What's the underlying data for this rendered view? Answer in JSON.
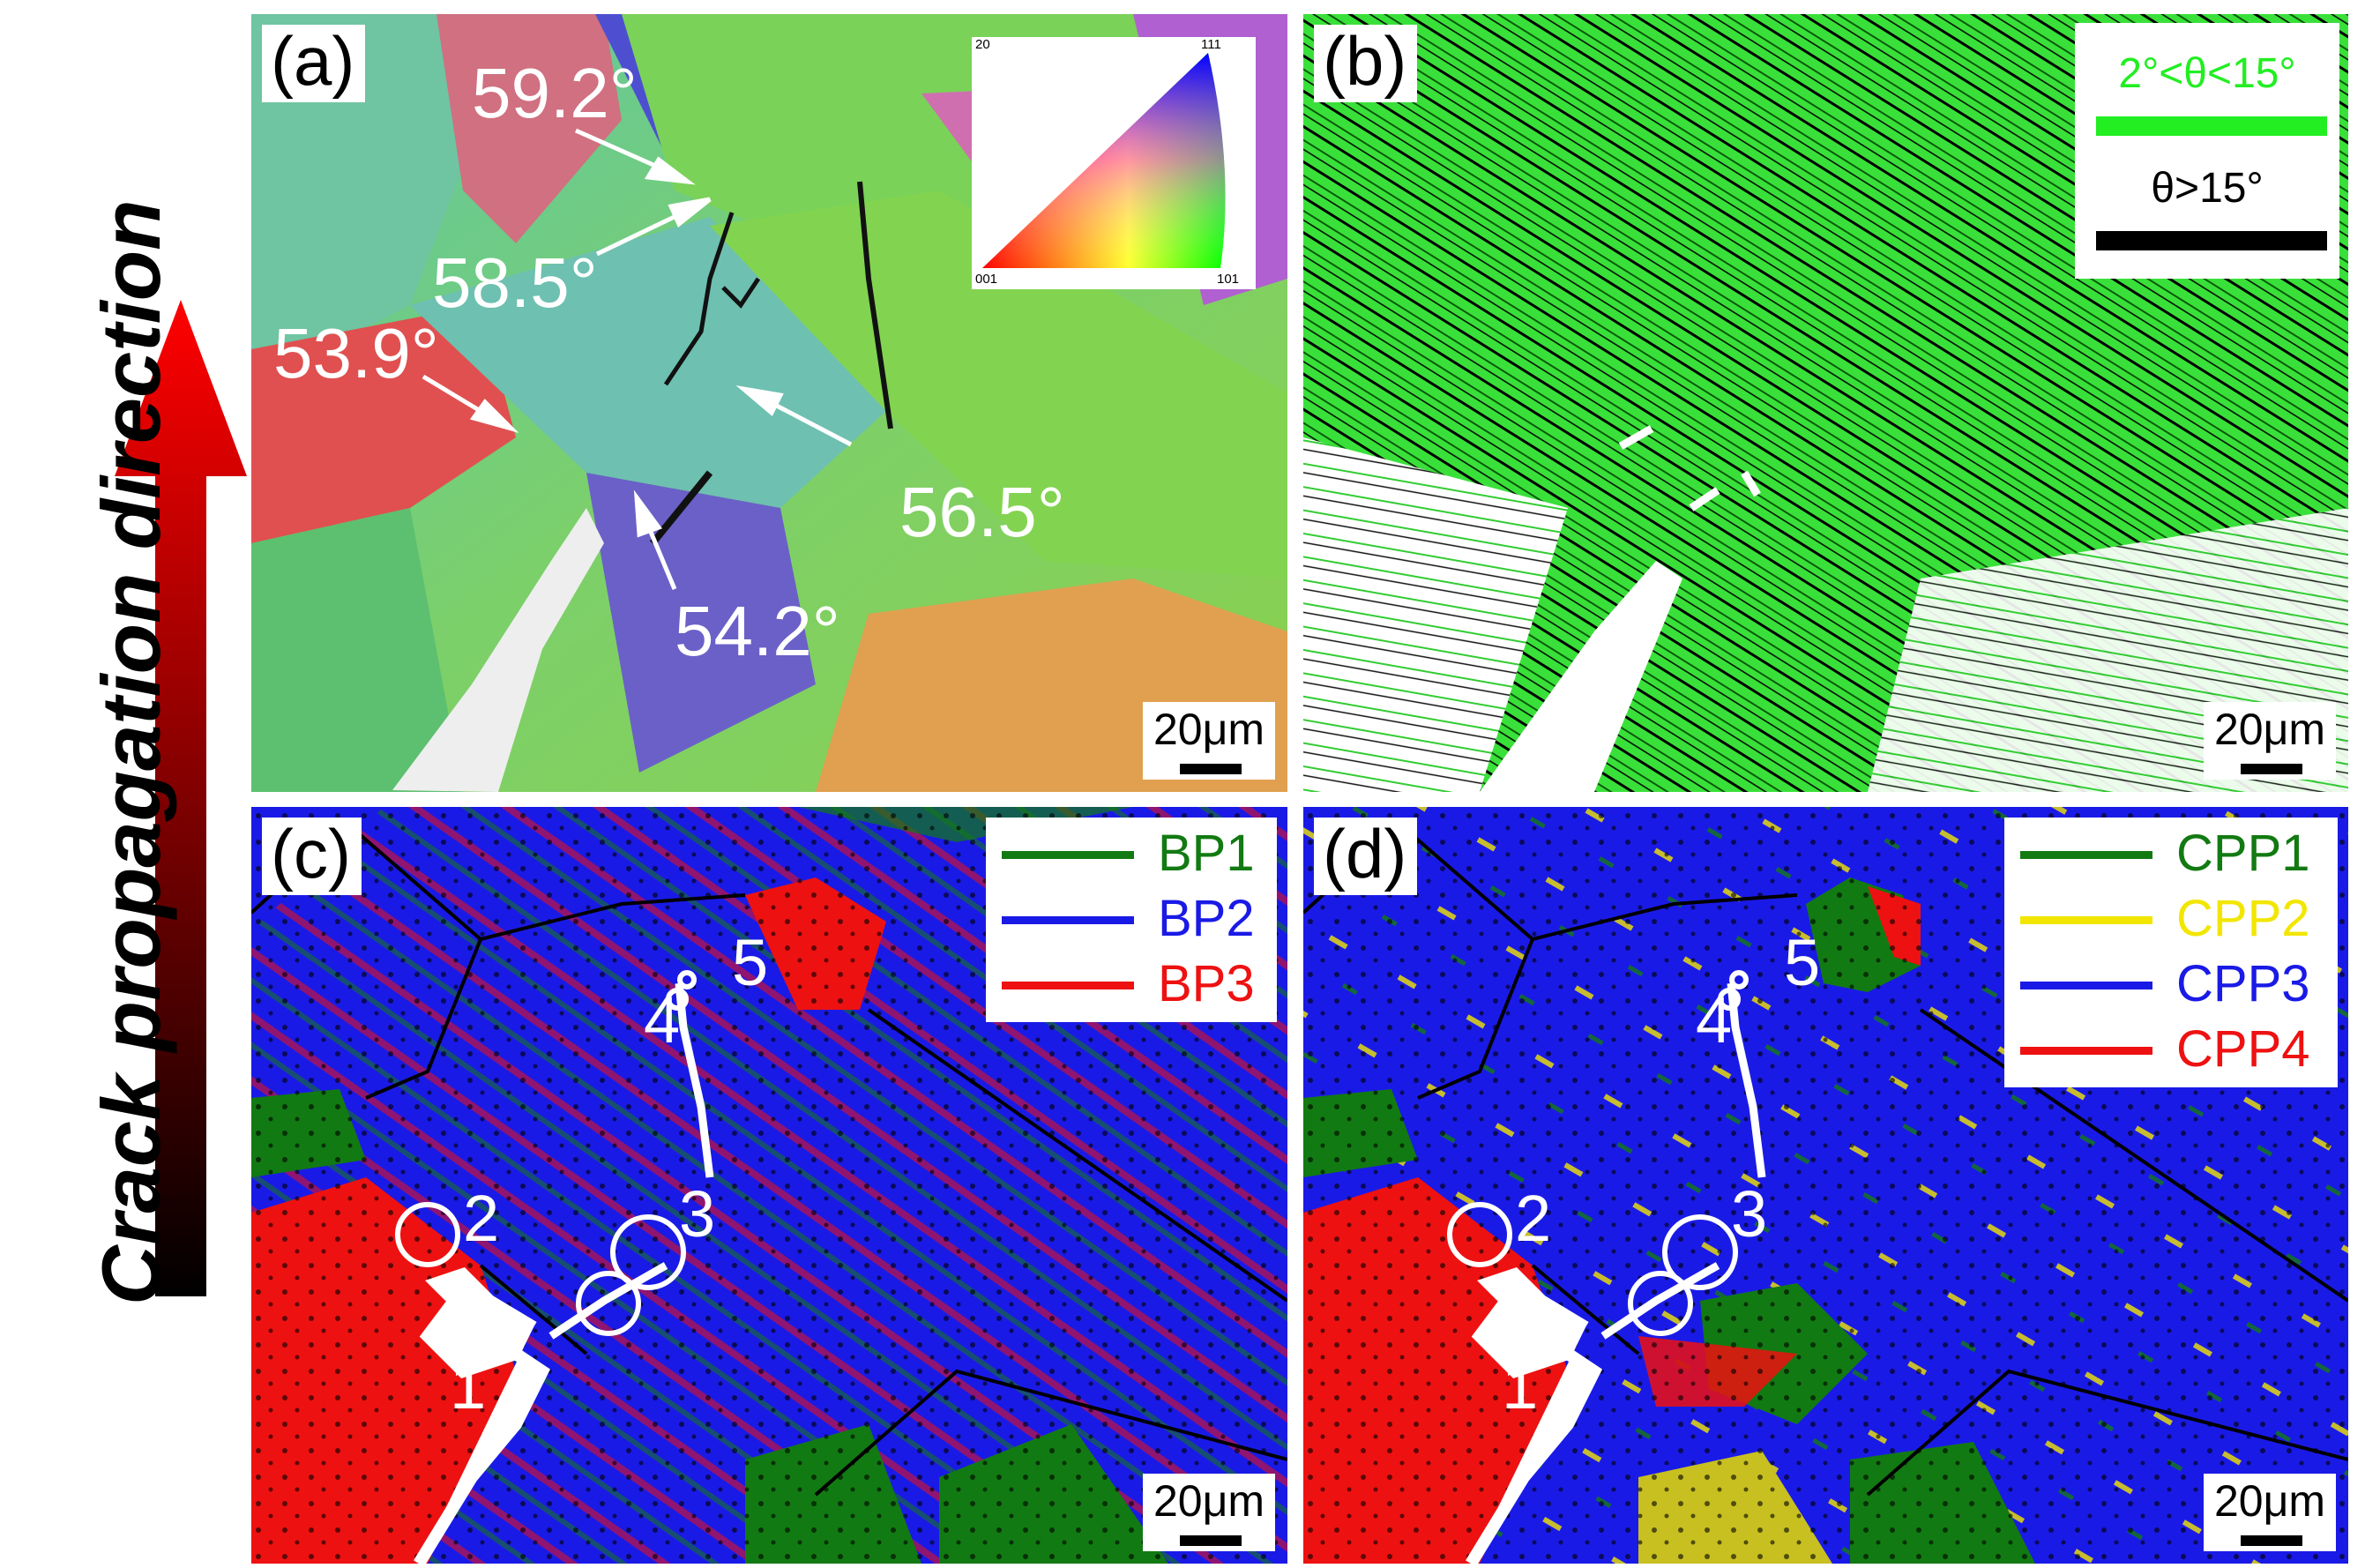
{
  "side": {
    "label": "Crack propagation direction",
    "arrow_top_color": "#e00000",
    "arrow_bottom_color": "#000000"
  },
  "panels": {
    "a": {
      "label": "(a)",
      "scale": "20μm",
      "angles": [
        "59.2°",
        "58.5°",
        "53.9°",
        "56.5°",
        "54.2°"
      ],
      "ipf_corners": {
        "top": "111",
        "left_top": "20",
        "bottom_left": "001",
        "bottom_right": "101"
      }
    },
    "b": {
      "label": "(b)",
      "scale": "20μm",
      "legend": [
        {
          "text": "2°<θ<15°",
          "color": "#22ee22"
        },
        {
          "text": "θ>15°",
          "color": "#000000"
        }
      ]
    },
    "c": {
      "label": "(c)",
      "scale": "20μm",
      "legend": [
        {
          "text": "BP1",
          "color": "#127a12"
        },
        {
          "text": "BP2",
          "color": "#1a1ae6"
        },
        {
          "text": "BP3",
          "color": "#ee1111"
        }
      ],
      "sites": [
        "1",
        "2",
        "3",
        "4",
        "5"
      ]
    },
    "d": {
      "label": "(d)",
      "scale": "20μm",
      "legend": [
        {
          "text": "CPP1",
          "color": "#127a12"
        },
        {
          "text": "CPP2",
          "color": "#f2e600"
        },
        {
          "text": "CPP3",
          "color": "#1a1ae6"
        },
        {
          "text": "CPP4",
          "color": "#ee1111"
        }
      ],
      "sites": [
        "1",
        "2",
        "3",
        "4",
        "5"
      ]
    }
  }
}
